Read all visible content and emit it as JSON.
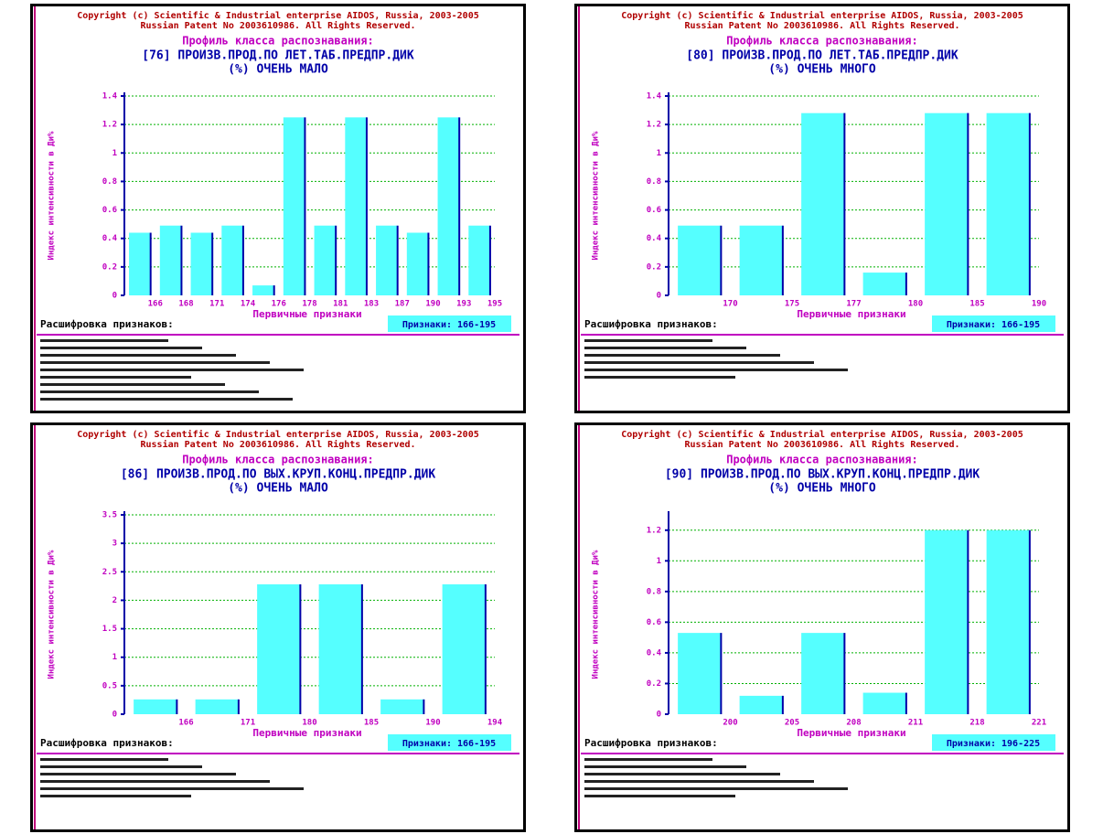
{
  "chart_data": [
    {
      "type": "bar",
      "copyright": "Copyright (c) Scientific & Industrial enterprise AIDOS, Russia, 2003-2005",
      "patent": "Russian Patent No 2003610986. All Rights Reserved.",
      "title": "Профиль класса распознавания:",
      "subtitle": "[76] ПРОИЗВ.ПРОД.ПО ЛЕТ.ТАБ.ПРЕДПР.ДИК",
      "subtitle2": "(%) ОЧЕНЬ МАЛО",
      "y_label": "Индекс интенсивности в Ди%",
      "x_label": "Первичные признаки",
      "legend_heading": "Расшифровка признаков:",
      "range_label": "Признаки: 166-195",
      "categories": [
        "166",
        "168",
        "171",
        "174",
        "176",
        "178",
        "181",
        "183",
        "187",
        "190",
        "193",
        "195"
      ],
      "values": [
        0.44,
        0.49,
        0.44,
        0.49,
        0.07,
        1.25,
        0.49,
        1.25,
        0.49,
        0.44,
        1.25,
        0.49
      ],
      "ylim": [
        0,
        1.4
      ],
      "yticks": [
        0,
        0.2,
        0.4,
        0.6,
        0.8,
        1,
        1.2,
        1.4
      ],
      "color": "#55ffff",
      "grid": true
    },
    {
      "type": "bar",
      "copyright": "Copyright (c) Scientific & Industrial enterprise AIDOS, Russia, 2003-2005",
      "patent": "Russian Patent No 2003610986. All Rights Reserved.",
      "title": "Профиль класса распознавания:",
      "subtitle": "[80] ПРОИЗВ.ПРОД.ПО ЛЕТ.ТАБ.ПРЕДПР.ДИК",
      "subtitle2": "(%) ОЧЕНЬ МНОГО",
      "y_label": "Индекс интенсивности в Ди%",
      "x_label": "Первичные признаки",
      "legend_heading": "Расшифровка признаков:",
      "range_label": "Признаки: 166-195",
      "categories": [
        "170",
        "175",
        "177",
        "180",
        "185",
        "190"
      ],
      "values": [
        0.49,
        0.49,
        1.28,
        0.16,
        1.28,
        1.28
      ],
      "ylim": [
        0,
        1.4
      ],
      "yticks": [
        0,
        0.2,
        0.4,
        0.6,
        0.8,
        1,
        1.2,
        1.4
      ],
      "color": "#55ffff",
      "grid": true
    },
    {
      "type": "bar",
      "copyright": "Copyright (c) Scientific & Industrial enterprise AIDOS, Russia, 2003-2005",
      "patent": "Russian Patent No 2003610986. All Rights Reserved.",
      "title": "Профиль класса распознавания:",
      "subtitle": "[86] ПРОИЗВ.ПРОД.ПО ВЫХ.КРУП.КОНЦ.ПРЕДПР.ДИК",
      "subtitle2": "(%) ОЧЕНЬ МАЛО",
      "y_label": "Индекс интенсивности в Ди%",
      "x_label": "Первичные признаки",
      "legend_heading": "Расшифровка признаков:",
      "range_label": "Признаки: 166-195",
      "categories": [
        "166",
        "171",
        "180",
        "185",
        "190",
        "194"
      ],
      "values": [
        0.26,
        0.26,
        2.28,
        2.28,
        0.26,
        2.28
      ],
      "ylim": [
        0,
        3.5
      ],
      "yticks": [
        0,
        0.5,
        1,
        1.5,
        2,
        2.5,
        3,
        3.5
      ],
      "color": "#55ffff",
      "grid": true
    },
    {
      "type": "bar",
      "copyright": "Copyright (c) Scientific & Industrial enterprise AIDOS, Russia, 2003-2005",
      "patent": "Russian Patent No 2003610986. All Rights Reserved.",
      "title": "Профиль класса распознавания:",
      "subtitle": "[90] ПРОИЗВ.ПРОД.ПО ВЫХ.КРУП.КОНЦ.ПРЕДПР.ДИК",
      "subtitle2": "(%) ОЧЕНЬ МНОГО",
      "y_label": "Индекс интенсивности в Ди%",
      "x_label": "Первичные признаки",
      "legend_heading": "Расшифровка признаков:",
      "range_label": "Признаки: 196-225",
      "categories": [
        "200",
        "205",
        "208",
        "211",
        "218",
        "221"
      ],
      "values": [
        0.53,
        0.12,
        0.53,
        0.14,
        1.2,
        1.2
      ],
      "ylim": [
        0,
        1.3
      ],
      "yticks": [
        0,
        0.2,
        0.4,
        0.6,
        0.8,
        1,
        1.2
      ],
      "color": "#55ffff",
      "grid": true
    }
  ]
}
